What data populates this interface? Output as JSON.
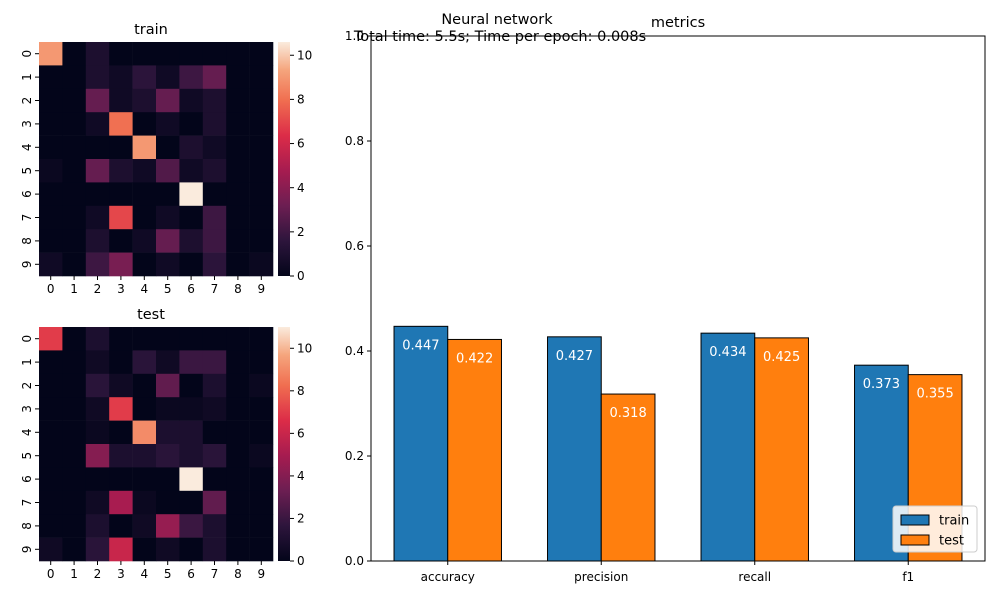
{
  "figure": {
    "suptitle": "Neural network",
    "subtitle": "Total time: 5.5s; Time per epoch: 0.008s"
  },
  "chart_data": [
    {
      "type": "heatmap",
      "title": "train",
      "x_ticks": [
        "0",
        "1",
        "2",
        "3",
        "4",
        "5",
        "6",
        "7",
        "8",
        "9"
      ],
      "y_ticks": [
        "0",
        "1",
        "2",
        "3",
        "4",
        "5",
        "6",
        "7",
        "8",
        "9"
      ],
      "colorbar_ticks": [
        0,
        2,
        4,
        6,
        8,
        10
      ],
      "vmin": 0,
      "vmax": 10.6,
      "matrix": [
        [
          9,
          0,
          1,
          0,
          0,
          0,
          0,
          0,
          0,
          0
        ],
        [
          0,
          0,
          1,
          0.5,
          1.5,
          0.5,
          2,
          3,
          0,
          0
        ],
        [
          0,
          0,
          3,
          0.5,
          1,
          3,
          0.5,
          1,
          0,
          0
        ],
        [
          0,
          0,
          0.5,
          8,
          0,
          0.5,
          0,
          1,
          0,
          0
        ],
        [
          0,
          0,
          0,
          0,
          9,
          0,
          1,
          0.5,
          0,
          0
        ],
        [
          0.3,
          0,
          3,
          1,
          0.5,
          2.5,
          0.5,
          1,
          0,
          0
        ],
        [
          0,
          0,
          0,
          0,
          0,
          0,
          10.6,
          0,
          0,
          0
        ],
        [
          0,
          0,
          0.5,
          7,
          0,
          0.5,
          0,
          2,
          0,
          0
        ],
        [
          0,
          0,
          1,
          0,
          0.5,
          3,
          1,
          2,
          0,
          0
        ],
        [
          0.5,
          0,
          2,
          3.5,
          0,
          0.5,
          0,
          1.5,
          0,
          0.3
        ]
      ]
    },
    {
      "type": "heatmap",
      "title": "test",
      "x_ticks": [
        "0",
        "1",
        "2",
        "3",
        "4",
        "5",
        "6",
        "7",
        "8",
        "9"
      ],
      "y_ticks": [
        "0",
        "1",
        "2",
        "3",
        "4",
        "5",
        "6",
        "7",
        "8",
        "9"
      ],
      "colorbar_ticks": [
        0,
        2,
        4,
        6,
        8,
        10
      ],
      "vmin": 0,
      "vmax": 11,
      "matrix": [
        [
          7,
          0,
          1,
          0,
          0,
          0,
          0,
          0,
          0,
          0
        ],
        [
          0,
          0,
          0.5,
          0,
          1.5,
          0.5,
          2,
          2,
          0,
          0
        ],
        [
          0,
          0,
          1.5,
          0.5,
          0,
          3,
          0,
          1,
          0,
          0.3
        ],
        [
          0,
          0,
          0.5,
          7,
          0,
          0.3,
          0.3,
          0.5,
          0,
          0
        ],
        [
          0,
          0,
          0.3,
          0,
          9,
          1,
          1,
          0,
          0,
          0
        ],
        [
          0,
          0,
          4,
          1,
          1,
          1.5,
          1,
          1.5,
          0,
          0.3
        ],
        [
          0,
          0,
          0,
          0,
          0,
          0,
          11,
          0,
          0,
          0
        ],
        [
          0,
          0,
          0.5,
          5,
          0.3,
          0,
          0,
          3,
          0,
          0
        ],
        [
          0,
          0,
          1,
          0,
          0.5,
          4.5,
          2,
          1,
          0,
          0
        ],
        [
          0.5,
          0,
          1.5,
          6,
          0,
          0.5,
          0,
          1,
          0,
          0
        ]
      ]
    },
    {
      "type": "bar",
      "title": "metrics",
      "categories": [
        "accuracy",
        "precision",
        "recall",
        "f1"
      ],
      "series": [
        {
          "name": "train",
          "values": [
            0.447,
            0.427,
            0.434,
            0.373
          ],
          "color": "#1f77b4"
        },
        {
          "name": "test",
          "values": [
            0.422,
            0.318,
            0.425,
            0.355
          ],
          "color": "#ff7f0e"
        }
      ],
      "ylim": [
        0,
        1.0
      ],
      "y_ticks": [
        "0.0",
        "0.2",
        "0.4",
        "0.6",
        "0.8",
        "1.0"
      ],
      "legend_position": "bottom-right",
      "xlabel": "",
      "ylabel": ""
    }
  ]
}
